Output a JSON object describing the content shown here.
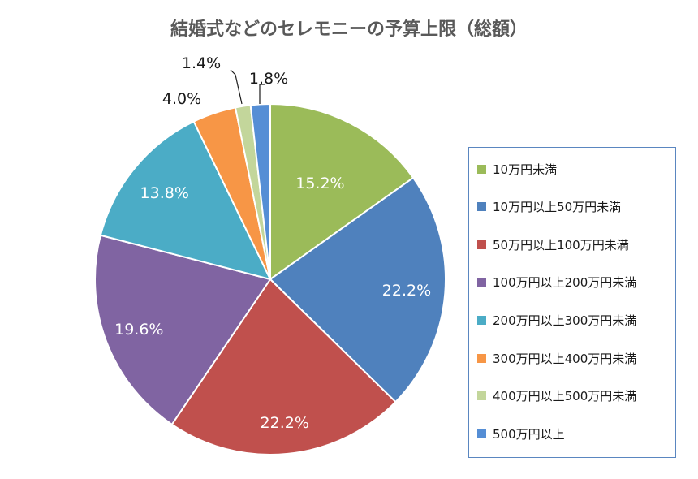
{
  "chart_data": {
    "type": "pie",
    "title": "結婚式などのセレモニーの予算上限（総額）",
    "slices": [
      {
        "label": "10万円未満",
        "value": 15.2,
        "value_label": "15.2%",
        "color": "#9bbb59"
      },
      {
        "label": "10万円以上50万円未満",
        "value": 22.2,
        "value_label": "22.2%",
        "color": "#4f81bd"
      },
      {
        "label": "50万円以上100万円未満",
        "value": 22.2,
        "value_label": "22.2%",
        "color": "#c0504d"
      },
      {
        "label": "100万円以上200万円未満",
        "value": 19.6,
        "value_label": "19.6%",
        "color": "#8064a2"
      },
      {
        "label": "200万円以上300万円未満",
        "value": 13.8,
        "value_label": "13.8%",
        "color": "#4bacc6"
      },
      {
        "label": "300万円以上400万円未満",
        "value": 4.0,
        "value_label": "4.0%",
        "color": "#f79646"
      },
      {
        "label": "400万円以上500万円未満",
        "value": 1.4,
        "value_label": "1.4%",
        "color": "#c3d69b"
      },
      {
        "label": "500万円以上",
        "value": 1.8,
        "value_label": "1.8%",
        "color": "#558ed5"
      }
    ],
    "legend_position": "right"
  }
}
